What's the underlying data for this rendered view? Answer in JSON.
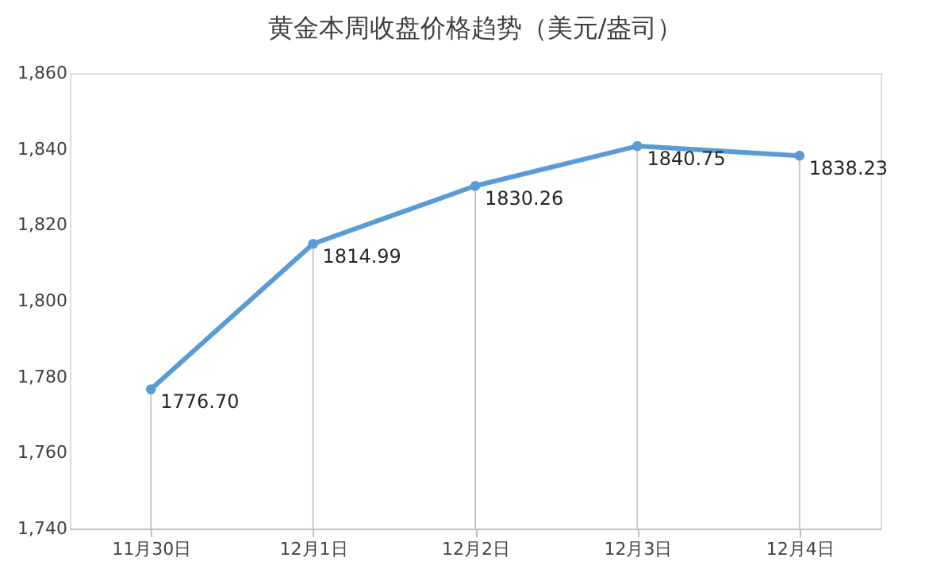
{
  "chart_data": {
    "type": "line",
    "title": "黄金本周收盘价格趋势（美元/盎司）",
    "categories": [
      "11月30日",
      "12月1日",
      "12月2日",
      "12月3日",
      "12月4日"
    ],
    "series": [
      {
        "color": "#5b9bd5",
        "values": [
          1776.7,
          1814.99,
          1830.26,
          1840.75,
          1838.23
        ],
        "value_labels": [
          "1776.70",
          "1814.99",
          "1830.26",
          "1840.75",
          "1838.23"
        ]
      }
    ],
    "ylim": [
      1740,
      1860
    ],
    "yticks": [
      {
        "value": 1740,
        "label": "1,740"
      },
      {
        "value": 1760,
        "label": "1,760"
      },
      {
        "value": 1780,
        "label": "1,780"
      },
      {
        "value": 1800,
        "label": "1,800"
      },
      {
        "value": 1820,
        "label": "1,820"
      },
      {
        "value": 1840,
        "label": "1,840"
      },
      {
        "value": 1860,
        "label": "1,860"
      }
    ],
    "grid": "x",
    "marker": "circle",
    "line_style": "solid"
  }
}
